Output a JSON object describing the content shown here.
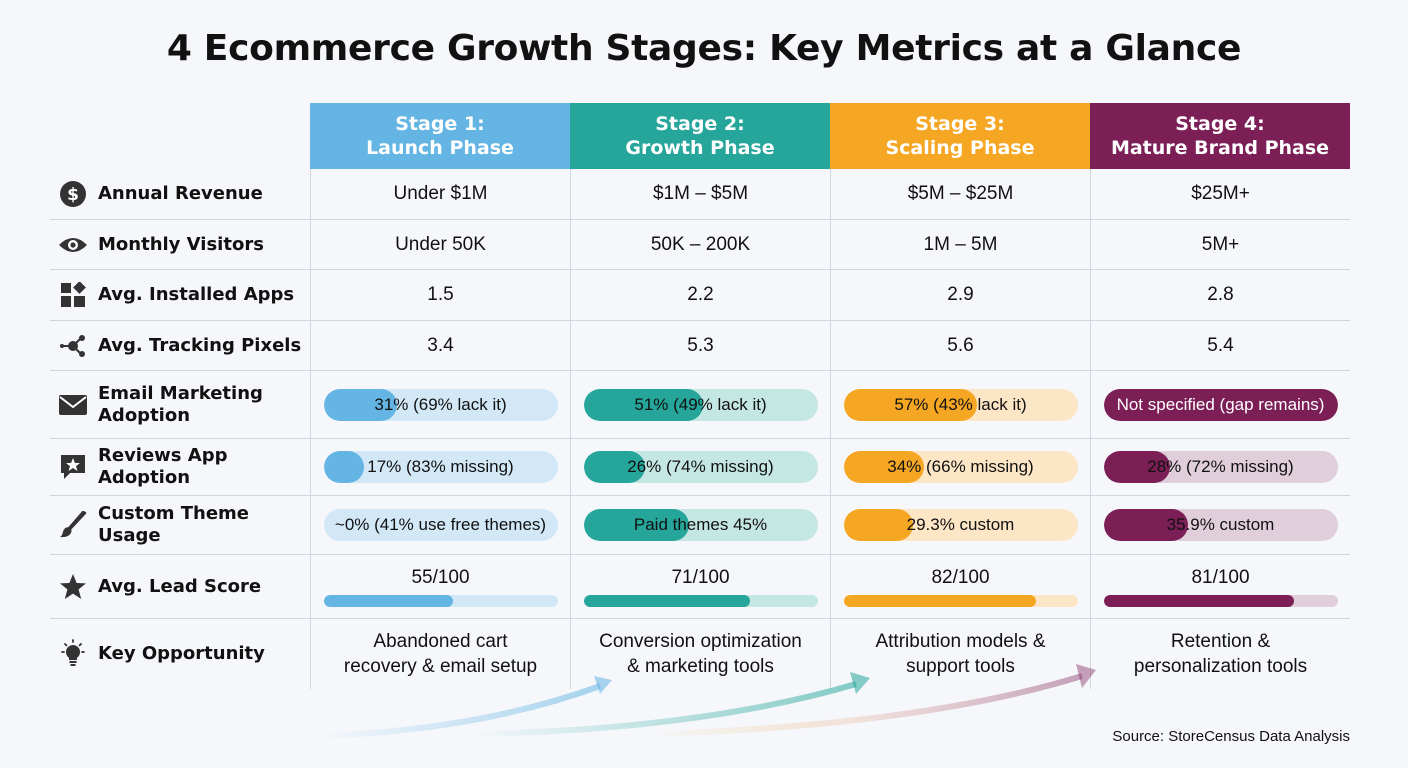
{
  "title": "4 Ecommerce Growth Stages: Key Metrics at a Glance",
  "source": "Source: StoreCensus Data Analysis",
  "stages": [
    {
      "line1": "Stage 1:",
      "line2": "Launch Phase",
      "color": "#64b5e3",
      "light": "#d3e8f7"
    },
    {
      "line1": "Stage 2:",
      "line2": "Growth Phase",
      "color": "#26a69a",
      "light": "#c5e7e3"
    },
    {
      "line1": "Stage 3:",
      "line2": "Scaling Phase",
      "color": "#f5a623",
      "light": "#fde6c5"
    },
    {
      "line1": "Stage 4:",
      "line2": "Mature Brand Phase",
      "color": "#7b1f56",
      "light": "#e0cfda"
    }
  ],
  "rows": {
    "annual_revenue": {
      "label": "Annual Revenue",
      "icon": "dollar-circle-icon",
      "values": [
        "Under $1M",
        "$1M – $5M",
        "$5M – $25M",
        "$25M+"
      ]
    },
    "monthly_visitors": {
      "label": "Monthly Visitors",
      "icon": "eye-icon",
      "values": [
        "Under 50K",
        "50K – 200K",
        "1M – 5M",
        "5M+"
      ]
    },
    "installed_apps": {
      "label": "Avg. Installed Apps",
      "icon": "apps-grid-icon",
      "values": [
        "1.5",
        "2.2",
        "2.9",
        "2.8"
      ]
    },
    "tracking_pixels": {
      "label": "Avg. Tracking Pixels",
      "icon": "share-nodes-icon",
      "values": [
        "3.4",
        "5.3",
        "5.6",
        "5.4"
      ]
    },
    "email_marketing": {
      "label_line1": "Email Marketing",
      "label_line2": "Adoption",
      "icon": "envelope-icon",
      "values": [
        "31% (69% lack it)",
        "51% (49% lack it)",
        "57% (43% lack it)",
        "Not specified (gap remains)"
      ],
      "fill": [
        0.31,
        0.51,
        0.57,
        1.0
      ]
    },
    "reviews_app": {
      "label": "Reviews App Adoption",
      "icon": "star-chat-icon",
      "values": [
        "17% (83% missing)",
        "26% (74% missing)",
        "34% (66% missing)",
        "28% (72% missing)"
      ],
      "fill": [
        0.17,
        0.26,
        0.34,
        0.28
      ]
    },
    "custom_theme": {
      "label": "Custom Theme Usage",
      "icon": "paintbrush-icon",
      "values": [
        "~0% (41% use free themes)",
        "Paid themes 45%",
        "29.3% custom",
        "35.9% custom"
      ],
      "fill": [
        0.0,
        0.45,
        0.293,
        0.359
      ]
    },
    "lead_score": {
      "label": "Avg. Lead Score",
      "icon": "star-icon",
      "values": [
        "55/100",
        "71/100",
        "82/100",
        "81/100"
      ],
      "fill": [
        0.55,
        0.71,
        0.82,
        0.81
      ]
    },
    "key_opportunity": {
      "label": "Key Opportunity",
      "icon": "lightbulb-icon",
      "line1": [
        "Abandoned cart",
        "Conversion optimization",
        "Attribution models &",
        "Retention &"
      ],
      "line2": [
        "recovery & email setup",
        "& marketing tools",
        "support tools",
        "personalization tools"
      ]
    }
  },
  "chart_data": {
    "type": "table",
    "title": "4 Ecommerce Growth Stages: Key Metrics at a Glance",
    "columns": [
      "Stage 1: Launch Phase",
      "Stage 2: Growth Phase",
      "Stage 3: Scaling Phase",
      "Stage 4: Mature Brand Phase"
    ],
    "rows": [
      {
        "metric": "Annual Revenue",
        "values": [
          "Under $1M",
          "$1M – $5M",
          "$5M – $25M",
          "$25M+"
        ]
      },
      {
        "metric": "Monthly Visitors",
        "values": [
          "Under 50K",
          "50K – 200K",
          "1M – 5M",
          "5M+"
        ]
      },
      {
        "metric": "Avg. Installed Apps",
        "values": [
          1.5,
          2.2,
          2.9,
          2.8
        ]
      },
      {
        "metric": "Avg. Tracking Pixels",
        "values": [
          3.4,
          5.3,
          5.6,
          5.4
        ]
      },
      {
        "metric": "Email Marketing Adoption",
        "values": [
          "31% (69% lack it)",
          "51% (49% lack it)",
          "57% (43% lack it)",
          "Not specified (gap remains)"
        ]
      },
      {
        "metric": "Reviews App Adoption",
        "values": [
          "17% (83% missing)",
          "26% (74% missing)",
          "34% (66% missing)",
          "28% (72% missing)"
        ]
      },
      {
        "metric": "Custom Theme Usage",
        "values": [
          "~0% (41% use free themes)",
          "Paid themes 45%",
          "29.3% custom",
          "35.9% custom"
        ]
      },
      {
        "metric": "Avg. Lead Score",
        "values": [
          55,
          71,
          82,
          81
        ],
        "max": 100
      },
      {
        "metric": "Key Opportunity",
        "values": [
          "Abandoned cart recovery & email setup",
          "Conversion optimization & marketing tools",
          "Attribution models & support tools",
          "Retention & personalization tools"
        ]
      }
    ]
  }
}
